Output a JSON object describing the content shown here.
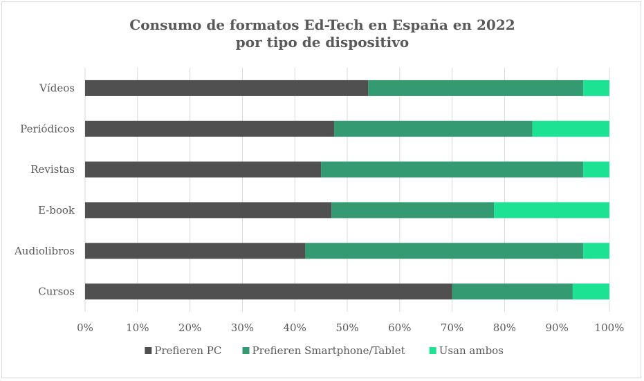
{
  "chart_data": {
    "type": "bar",
    "orientation": "horizontal",
    "stacked": true,
    "title": "Consumo de formatos Ed-Tech en España en 2022",
    "subtitle": "por tipo de dispositivo",
    "categories": [
      "Vídeos",
      "Periódicos",
      "Revistas",
      "E-book",
      "Audiolibros",
      "Cursos"
    ],
    "series": [
      {
        "name": "Prefieren PC",
        "values": [
          0.54,
          0.475,
          0.45,
          0.47,
          0.42,
          0.7
        ],
        "color": "#505050"
      },
      {
        "name": "Prefieren Smartphone/Tablet",
        "values": [
          0.41,
          0.378,
          0.5,
          0.31,
          0.53,
          0.23
        ],
        "color": "#339a72"
      },
      {
        "name": "Usan ambos",
        "values": [
          0.05,
          0.147,
          0.05,
          0.22,
          0.05,
          0.07
        ],
        "color": "#1de294"
      }
    ],
    "xlim": [
      0,
      1
    ],
    "x_ticks": [
      "0%",
      "10%",
      "20%",
      "30%",
      "40%",
      "50%",
      "60%",
      "70%",
      "80%",
      "90%",
      "100%"
    ],
    "grid": true,
    "legend_position": "bottom"
  }
}
